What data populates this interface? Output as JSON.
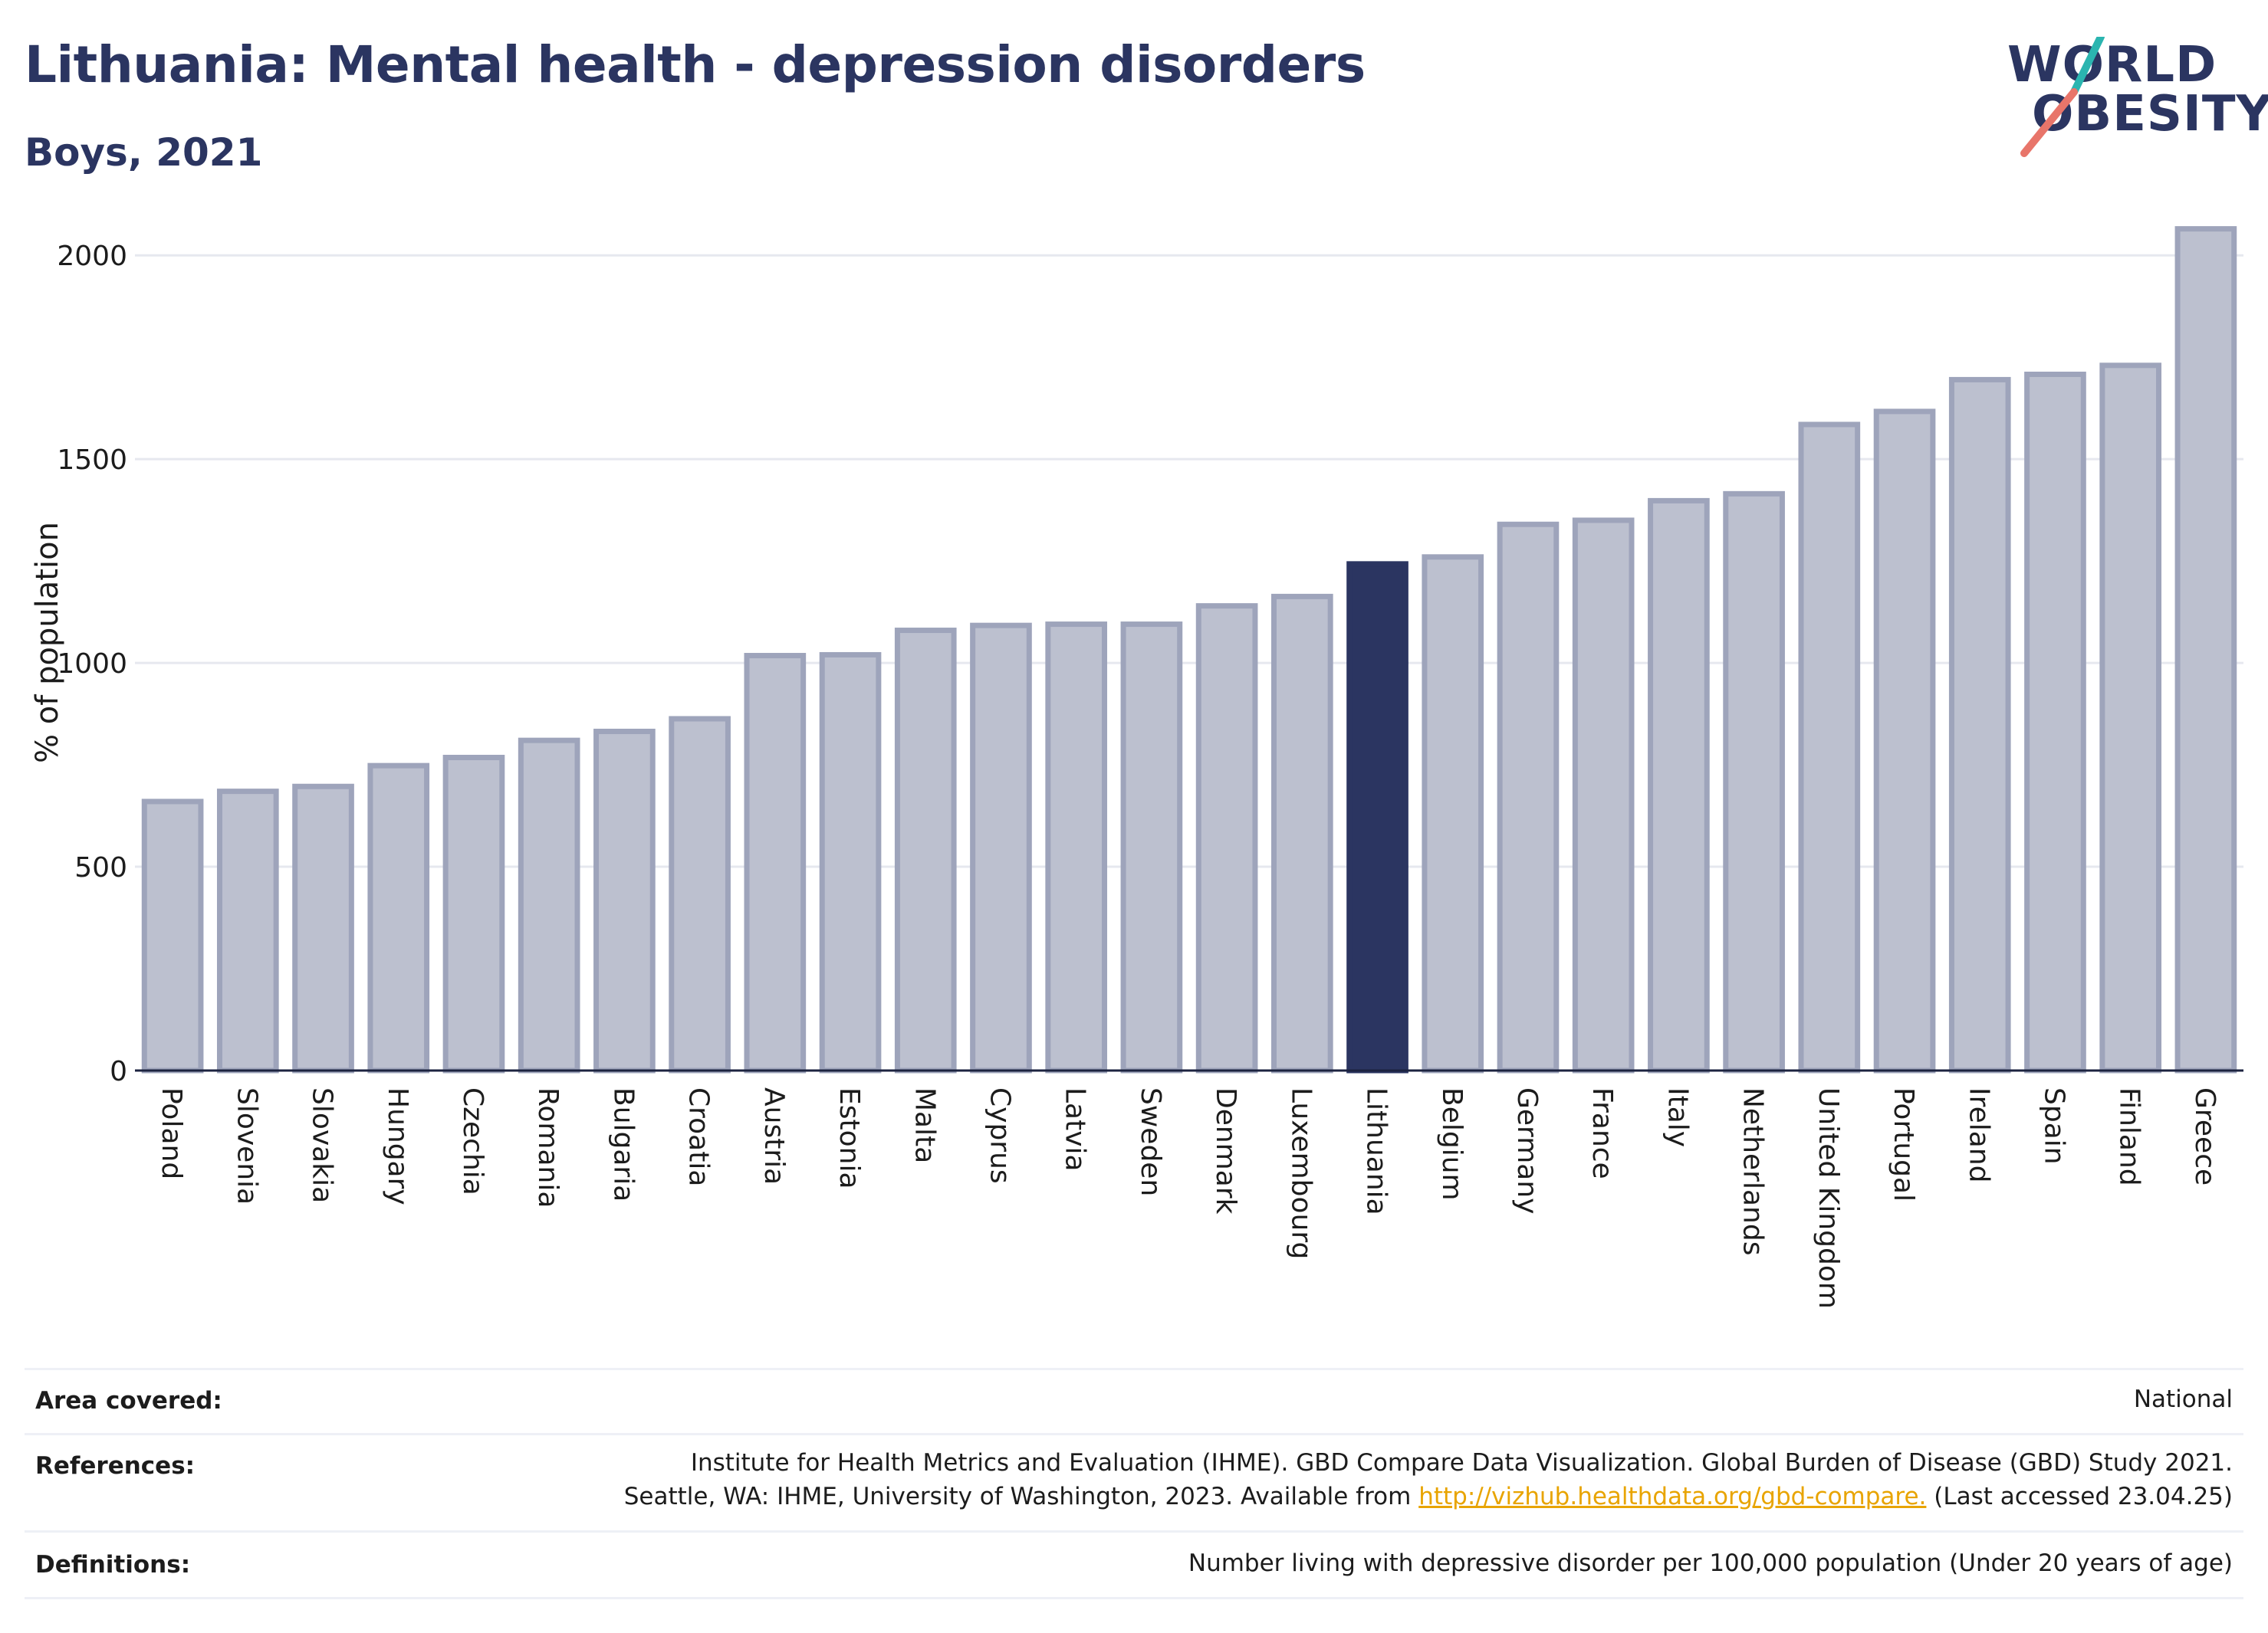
{
  "header": {
    "title": "Lithuania: Mental health - depression disorders",
    "subtitle": "Boys, 2021"
  },
  "logo": {
    "line1": "WORLD",
    "line2": "OBESITY"
  },
  "colors": {
    "bar": "#bcc0cf",
    "bar_edge": "#9ea4bb",
    "highlight": "#2b3561",
    "grid": "#e6e8ef",
    "axis": "#1c2340"
  },
  "chart_data": {
    "type": "bar",
    "ylabel": "% of population",
    "ylim": [
      0,
      2100
    ],
    "yticks": [
      0,
      500,
      1000,
      1500,
      2000
    ],
    "grid": true,
    "highlight": "Lithuania",
    "categories": [
      "Poland",
      "Slovenia",
      "Slovakia",
      "Hungary",
      "Czechia",
      "Romania",
      "Bulgaria",
      "Croatia",
      "Austria",
      "Estonia",
      "Malta",
      "Cyprus",
      "Latvia",
      "Sweden",
      "Denmark",
      "Luxembourg",
      "Lithuania",
      "Belgium",
      "Germany",
      "France",
      "Italy",
      "Netherlands",
      "United Kingdom",
      "Portugal",
      "Ireland",
      "Spain",
      "Finland",
      "Greece"
    ],
    "values": [
      660,
      685,
      697,
      748,
      768,
      810,
      832,
      863,
      1018,
      1020,
      1080,
      1092,
      1095,
      1095,
      1140,
      1163,
      1243,
      1260,
      1340,
      1350,
      1398,
      1415,
      1585,
      1617,
      1695,
      1708,
      1730,
      2065
    ]
  },
  "footer": {
    "area_label": "Area covered:",
    "area_value": "National",
    "references_label": "References:",
    "references_line1": "Institute for Health Metrics and Evaluation (IHME). GBD Compare Data Visualization. Global Burden of Disease (GBD) Study 2021.",
    "references_line2_pre": "Seattle, WA: IHME, University of Washington, 2023. Available from ",
    "references_link": "http://vizhub.healthdata.org/gbd-compare.",
    "references_line2_post": " (Last accessed 23.04.25)",
    "definitions_label": "Definitions:",
    "definitions_value": "Number living with depressive disorder per 100,000 population (Under 20 years of age)"
  }
}
